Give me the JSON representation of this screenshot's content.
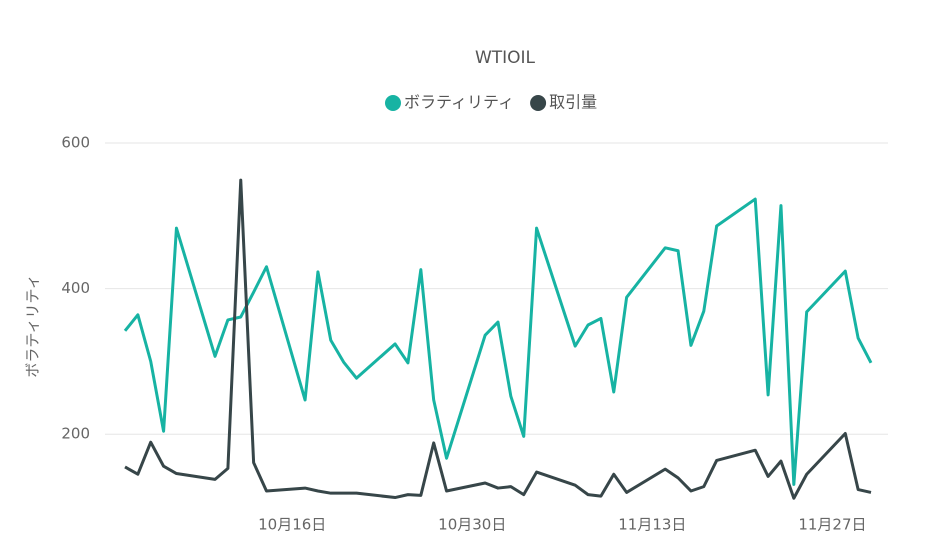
{
  "chart_data": {
    "type": "line",
    "title": "WTIOIL",
    "ylabel": "ボラティリティ",
    "x": [
      "10-03",
      "10-04",
      "10-05",
      "10-06",
      "10-07",
      "10-10",
      "10-11",
      "10-12",
      "10-13",
      "10-14",
      "10-17",
      "10-18",
      "10-19",
      "10-20",
      "10-21",
      "10-24",
      "10-25",
      "10-26",
      "10-27",
      "10-28",
      "10-31",
      "11-01",
      "11-02",
      "11-03",
      "11-04",
      "11-07",
      "11-08",
      "11-09",
      "11-10",
      "11-11",
      "11-14",
      "11-15",
      "11-16",
      "11-17",
      "11-18",
      "11-21",
      "11-22",
      "11-23",
      "11-24",
      "11-25",
      "11-28",
      "11-29",
      "11-30"
    ],
    "series": [
      {
        "name": "ボラティリティ",
        "color": "#17b3a3",
        "values": [
          342,
          364,
          300,
          204,
          483,
          307,
          357,
          361,
          395,
          430,
          247,
          423,
          329,
          299,
          277,
          324,
          298,
          426,
          247,
          167,
          336,
          354,
          252,
          197,
          483,
          321,
          350,
          359,
          258,
          388,
          456,
          452,
          322,
          369,
          486,
          523,
          254,
          514,
          131,
          368,
          424,
          332,
          298
        ]
      },
      {
        "name": "取引量",
        "color": "#374649",
        "values": [
          155,
          145,
          189,
          156,
          146,
          138,
          153,
          549,
          161,
          122,
          126,
          122,
          119,
          119,
          119,
          113,
          117,
          116,
          188,
          122,
          133,
          126,
          128,
          117,
          148,
          130,
          117,
          115,
          145,
          120,
          152,
          140,
          122,
          128,
          164,
          178,
          142,
          163,
          112,
          145,
          201,
          124,
          120
        ]
      }
    ],
    "xlim": [
      "10-03",
      "11-30"
    ],
    "xticks": [
      {
        "value": "10-16",
        "label": "10月16日"
      },
      {
        "value": "10-30",
        "label": "10月30日"
      },
      {
        "value": "11-13",
        "label": "11月13日"
      },
      {
        "value": "11-27",
        "label": "11月27日"
      }
    ],
    "ylim": [
      100,
      600
    ],
    "yticks": [
      200,
      400,
      600
    ],
    "grid": true
  }
}
